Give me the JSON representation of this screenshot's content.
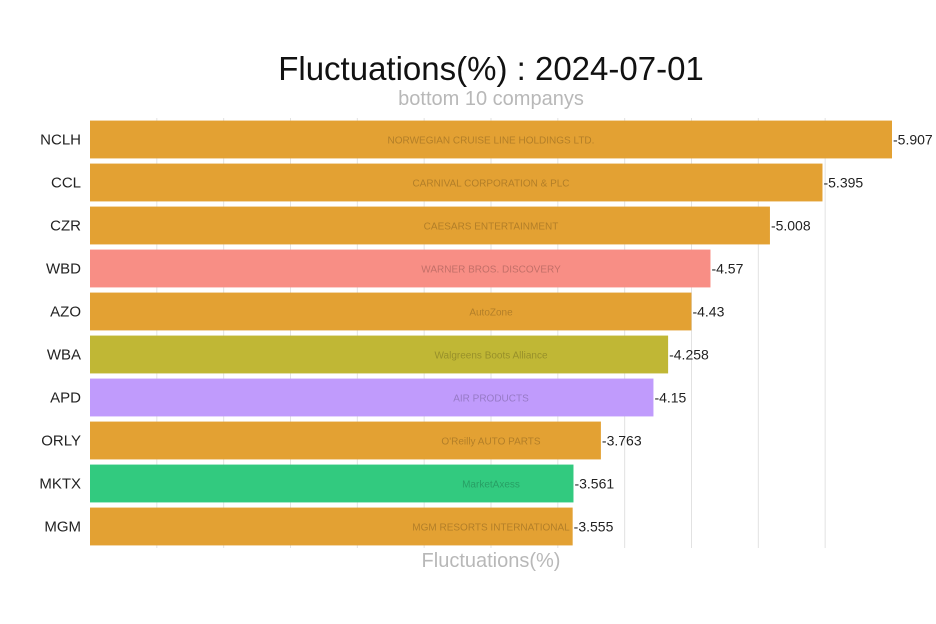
{
  "chart_data": {
    "type": "bar",
    "orientation": "horizontal",
    "title": "Fluctuations(%) : 2024-07-01",
    "subtitle": "bottom 10 companys",
    "xlabel": "Fluctuations(%)",
    "ylabel": "",
    "grid": true,
    "legend": "none",
    "xlim": [
      0,
      5.907
    ],
    "categories": [
      "NCLH",
      "CCL",
      "CZR",
      "WBD",
      "AZO",
      "WBA",
      "APD",
      "ORLY",
      "MKTX",
      "MGM"
    ],
    "values": [
      -5.907,
      -5.395,
      -5.008,
      -4.57,
      -4.43,
      -4.258,
      -4.15,
      -3.763,
      -3.561,
      -3.555
    ],
    "value_labels": [
      "-5.907",
      "-5.395",
      "-5.008",
      "-4.57",
      "-4.43",
      "-4.258",
      "-4.15",
      "-3.763",
      "-3.561",
      "-3.555"
    ],
    "colors": [
      "#e3a133",
      "#e3a133",
      "#e3a133",
      "#f88e85",
      "#e3a133",
      "#c0b735",
      "#c09bfc",
      "#e3a133",
      "#32ca7f",
      "#e3a133"
    ],
    "logos": [
      "NORWEGIAN CRUISE LINE HOLDINGS LTD.",
      "CARNIVAL CORPORATION & PLC",
      "CAESARS ENTERTAINMENT",
      "WARNER BROS. DISCOVERY",
      "AutoZone",
      "Walgreens Boots Alliance",
      "AIR PRODUCTS",
      "O'Reilly AUTO PARTS",
      "MarketAxess",
      "MGM RESORTS INTERNATIONAL"
    ]
  }
}
